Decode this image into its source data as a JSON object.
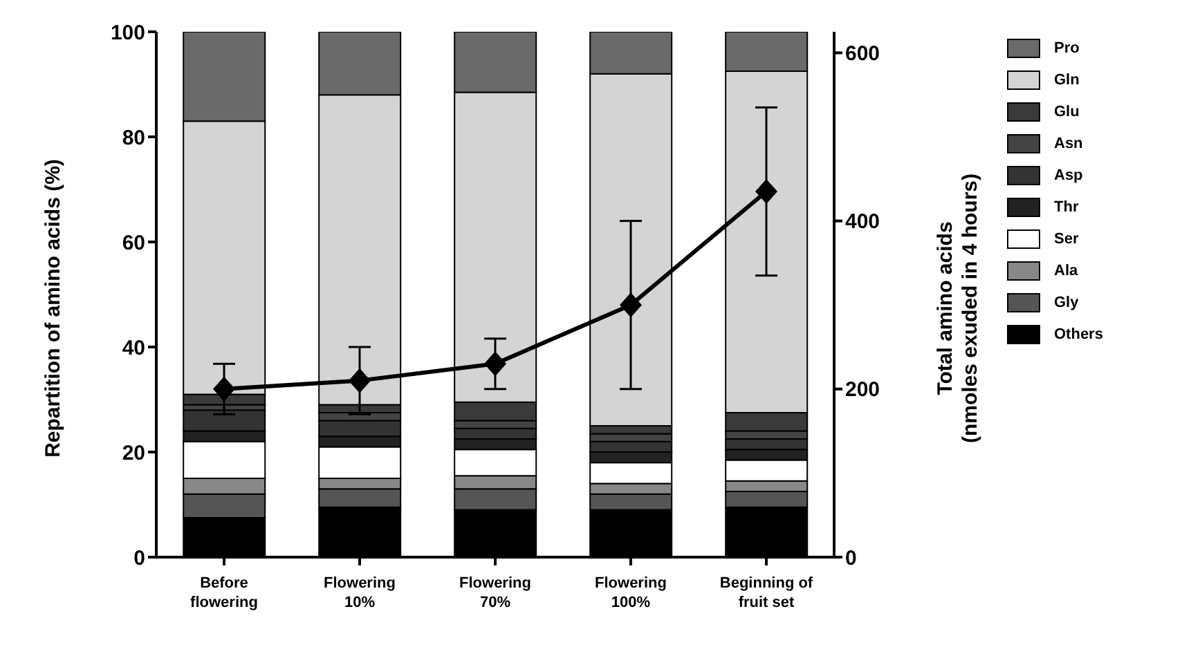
{
  "chart_data": {
    "type": "bar",
    "stacked": true,
    "categories": [
      "Before\nflowering",
      "Flowering\n10%",
      "Flowering\n70%",
      "Flowering\n100%",
      "Beginning of\nfruit set"
    ],
    "ylabel": "Repartition of amino acids (%)",
    "y2label": "Total amino acids\n(nmoles exuded in 4 hours)",
    "ylim": [
      0,
      100
    ],
    "yticks": [
      0,
      20,
      40,
      60,
      80,
      100
    ],
    "y2lim": [
      0,
      625
    ],
    "y2ticks": [
      0,
      200,
      400,
      600
    ],
    "legend": "right",
    "series": [
      {
        "name": "Others",
        "color": "#000000",
        "values": [
          7.5,
          9.5,
          9,
          9,
          9.5
        ]
      },
      {
        "name": "Gly",
        "color": "#555555",
        "values": [
          4.5,
          3.5,
          4,
          3,
          3
        ]
      },
      {
        "name": "Ala",
        "color": "#888888",
        "values": [
          3,
          2,
          2.5,
          2,
          2
        ]
      },
      {
        "name": "Ser",
        "color": "#ffffff",
        "values": [
          7,
          6,
          5,
          4,
          4
        ]
      },
      {
        "name": "Thr",
        "color": "#222222",
        "values": [
          2,
          2,
          2,
          2,
          2
        ]
      },
      {
        "name": "Asp",
        "color": "#333333",
        "values": [
          4,
          3,
          2,
          2,
          2
        ]
      },
      {
        "name": "Asn",
        "color": "#444444",
        "values": [
          1,
          1.5,
          1.5,
          1.5,
          1.5
        ]
      },
      {
        "name": "Glu",
        "color": "#3a3a3a",
        "values": [
          2,
          1.5,
          3.5,
          1.5,
          3.5
        ]
      },
      {
        "name": "Gln",
        "color": "#d4d4d4",
        "values": [
          52,
          59,
          59,
          67,
          65
        ]
      },
      {
        "name": "Pro",
        "color": "#6a6a6a",
        "values": [
          17,
          12,
          11.5,
          8,
          7.5
        ]
      },
      {
        "type": "line",
        "axis": "y2",
        "color": "#000000",
        "marker": "diamond",
        "line_style": "solid",
        "values": [
          200,
          210,
          230,
          300,
          435
        ],
        "errors": [
          30,
          40,
          30,
          100,
          100
        ]
      }
    ]
  }
}
